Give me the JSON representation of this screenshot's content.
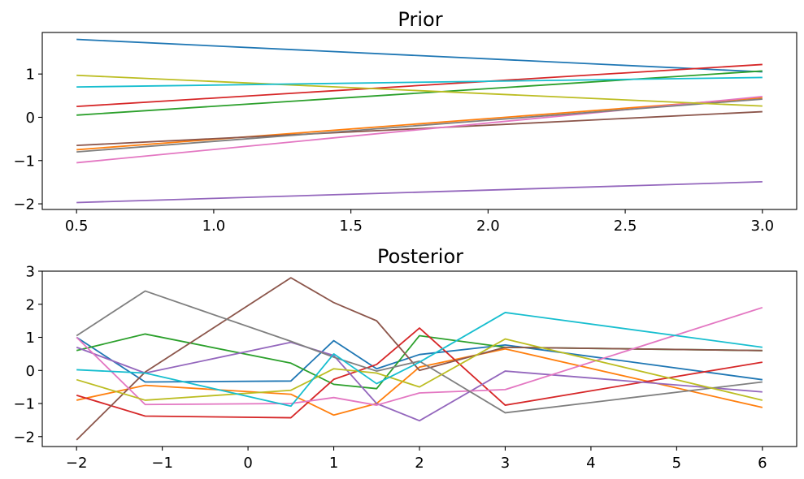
{
  "chart_data": [
    {
      "type": "line",
      "title": "Prior",
      "xlim": [
        0.375,
        3.125
      ],
      "ylim": [
        -2.13,
        1.96
      ],
      "xticks": [
        0.5,
        1.0,
        1.5,
        2.0,
        2.5,
        3.0
      ],
      "xtick_labels": [
        "0.5",
        "1.0",
        "1.5",
        "2.0",
        "2.5",
        "3.0"
      ],
      "yticks": [
        -2,
        -1,
        0,
        1
      ],
      "ytick_labels": [
        "−2",
        "−1",
        "0",
        "1"
      ],
      "grid": false,
      "x": [
        0.5,
        3.0
      ],
      "series": [
        {
          "color": "#1f77b4",
          "values": [
            1.8,
            1.05
          ]
        },
        {
          "color": "#ff7f0e",
          "values": [
            -0.75,
            0.45
          ]
        },
        {
          "color": "#2ca02c",
          "values": [
            0.05,
            1.07
          ]
        },
        {
          "color": "#d62728",
          "values": [
            0.25,
            1.22
          ]
        },
        {
          "color": "#9467bd",
          "values": [
            -1.97,
            -1.49
          ]
        },
        {
          "color": "#8c564b",
          "values": [
            -0.65,
            0.13
          ]
        },
        {
          "color": "#e377c2",
          "values": [
            -1.05,
            0.48
          ]
        },
        {
          "color": "#7f7f7f",
          "values": [
            -0.8,
            0.42
          ]
        },
        {
          "color": "#bcbd22",
          "values": [
            0.97,
            0.26
          ]
        },
        {
          "color": "#17becf",
          "values": [
            0.7,
            0.92
          ]
        }
      ]
    },
    {
      "type": "line",
      "title": "Posterior",
      "xlim": [
        -2.4,
        6.4
      ],
      "ylim": [
        -2.3,
        3.0
      ],
      "xticks": [
        -2,
        -1,
        0,
        1,
        2,
        3,
        4,
        5,
        6
      ],
      "xtick_labels": [
        "−2",
        "−1",
        "0",
        "1",
        "2",
        "3",
        "4",
        "5",
        "6"
      ],
      "yticks": [
        -2,
        -1,
        0,
        1,
        2,
        3
      ],
      "ytick_labels": [
        "−2",
        "−1",
        "0",
        "1",
        "2",
        "3"
      ],
      "grid": false,
      "x": [
        -2.0,
        -1.2,
        0.5,
        1.0,
        1.5,
        2.0,
        3.0,
        6.0
      ],
      "series": [
        {
          "color": "#1f77b4",
          "values": [
            1.0,
            -0.35,
            -0.32,
            0.9,
            0.05,
            0.48,
            0.77,
            -0.28
          ]
        },
        {
          "color": "#ff7f0e",
          "values": [
            -0.9,
            -0.45,
            -0.72,
            -1.35,
            -1.0,
            0.1,
            0.65,
            -1.12
          ]
        },
        {
          "color": "#2ca02c",
          "values": [
            0.6,
            1.1,
            0.22,
            -0.42,
            -0.55,
            1.05,
            0.7,
            0.6
          ]
        },
        {
          "color": "#d62728",
          "values": [
            -0.75,
            -1.38,
            -1.43,
            -0.27,
            0.18,
            1.28,
            -1.05,
            0.25
          ]
        },
        {
          "color": "#9467bd",
          "values": [
            0.7,
            -0.08,
            0.85,
            0.45,
            -1.0,
            -1.52,
            -0.02,
            -0.65
          ]
        },
        {
          "color": "#8c564b",
          "values": [
            -2.1,
            -0.05,
            2.8,
            2.05,
            1.5,
            0.0,
            0.7,
            0.6
          ]
        },
        {
          "color": "#e377c2",
          "values": [
            1.0,
            -1.03,
            -1.0,
            -0.82,
            -1.05,
            -0.68,
            -0.58,
            1.9
          ]
        },
        {
          "color": "#7f7f7f",
          "values": [
            1.05,
            2.4,
            0.88,
            0.4,
            -0.02,
            0.28,
            -1.28,
            -0.35
          ]
        },
        {
          "color": "#bcbd22",
          "values": [
            -0.28,
            -0.9,
            -0.6,
            0.05,
            -0.08,
            -0.5,
            0.95,
            -0.9
          ]
        },
        {
          "color": "#17becf",
          "values": [
            0.02,
            -0.08,
            -1.08,
            0.5,
            -0.4,
            0.25,
            1.75,
            0.7
          ]
        }
      ]
    }
  ]
}
